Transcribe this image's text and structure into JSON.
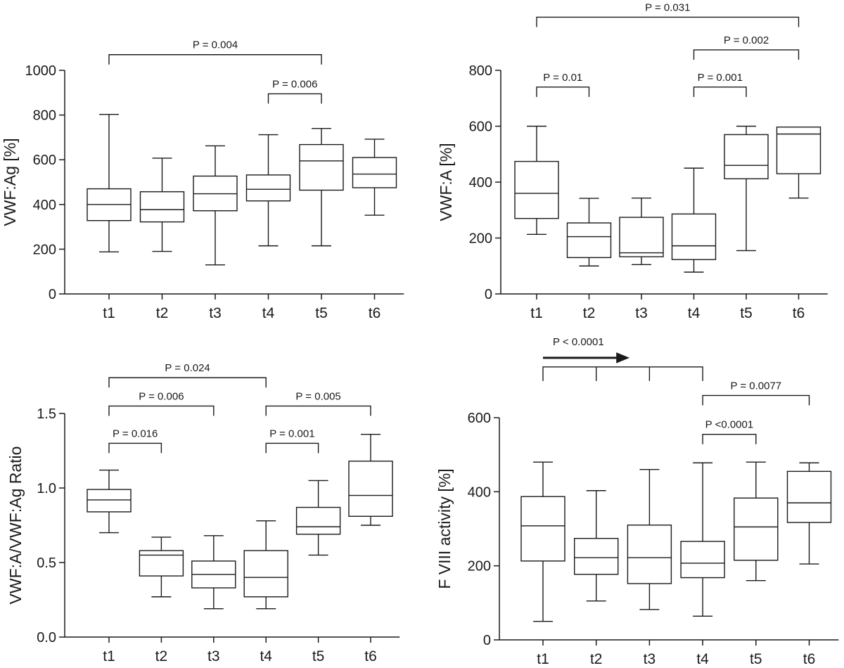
{
  "chart_data": [
    {
      "type": "box",
      "ylabel": "VWF:Ag [%]",
      "ylim": [
        0,
        1000
      ],
      "yticks": [
        0,
        200,
        400,
        600,
        800,
        1000
      ],
      "categories": [
        "t1",
        "t2",
        "t3",
        "t4",
        "t5",
        "t6"
      ],
      "boxes": [
        {
          "min": 188,
          "q1": 328,
          "median": 400,
          "q3": 470,
          "max": 803
        },
        {
          "min": 190,
          "q1": 322,
          "median": 377,
          "q3": 457,
          "max": 607
        },
        {
          "min": 130,
          "q1": 372,
          "median": 448,
          "q3": 527,
          "max": 662
        },
        {
          "min": 215,
          "q1": 416,
          "median": 468,
          "q3": 532,
          "max": 712
        },
        {
          "min": 215,
          "q1": 464,
          "median": 595,
          "q3": 668,
          "max": 740
        },
        {
          "min": 352,
          "q1": 475,
          "median": 536,
          "q3": 610,
          "max": 692
        }
      ],
      "comparisons": [
        {
          "label": "P = 0.004",
          "from": 0,
          "to": 4,
          "level": 1070
        },
        {
          "label": "P = 0.006",
          "from": 3,
          "to": 4,
          "level": 895
        }
      ]
    },
    {
      "type": "box",
      "ylabel": "VWF:A [%]",
      "ylim": [
        0,
        800
      ],
      "yticks": [
        0,
        200,
        400,
        600,
        800
      ],
      "categories": [
        "t1",
        "t2",
        "t3",
        "t4",
        "t5",
        "t6"
      ],
      "boxes": [
        {
          "min": 213,
          "q1": 270,
          "median": 360,
          "q3": 474,
          "max": 600
        },
        {
          "min": 100,
          "q1": 130,
          "median": 205,
          "q3": 254,
          "max": 342
        },
        {
          "min": 105,
          "q1": 133,
          "median": 147,
          "q3": 274,
          "max": 343
        },
        {
          "min": 78,
          "q1": 123,
          "median": 172,
          "q3": 286,
          "max": 450
        },
        {
          "min": 155,
          "q1": 412,
          "median": 460,
          "q3": 570,
          "max": 600
        },
        {
          "min": 343,
          "q1": 430,
          "median": 572,
          "q3": 597,
          "max": 597
        }
      ],
      "comparisons": [
        {
          "label": "P = 0.031",
          "from": 0,
          "to": 5,
          "level": 990
        },
        {
          "label": "P = 0.01",
          "from": 0,
          "to": 1,
          "level": 740
        },
        {
          "label": "P = 0.002",
          "from": 3,
          "to": 5,
          "level": 873
        },
        {
          "label": "P = 0.001",
          "from": 3,
          "to": 4,
          "level": 740
        }
      ]
    },
    {
      "type": "box",
      "ylabel": "VWF:A/VWF:Ag Ratio",
      "ylim": [
        0,
        1.5
      ],
      "yticks": [
        "0.0",
        "0.5",
        "1.0",
        "1.5"
      ],
      "categories": [
        "t1",
        "t2",
        "t3",
        "t4",
        "t5",
        "t6"
      ],
      "boxes": [
        {
          "min": 0.7,
          "q1": 0.84,
          "median": 0.92,
          "q3": 0.99,
          "max": 1.12
        },
        {
          "min": 0.27,
          "q1": 0.41,
          "median": 0.55,
          "q3": 0.58,
          "max": 0.67
        },
        {
          "min": 0.19,
          "q1": 0.33,
          "median": 0.42,
          "q3": 0.51,
          "max": 0.68
        },
        {
          "min": 0.19,
          "q1": 0.27,
          "median": 0.4,
          "q3": 0.58,
          "max": 0.78
        },
        {
          "min": 0.55,
          "q1": 0.69,
          "median": 0.74,
          "q3": 0.87,
          "max": 1.05
        },
        {
          "min": 0.75,
          "q1": 0.81,
          "median": 0.95,
          "q3": 1.18,
          "max": 1.36
        }
      ],
      "comparisons": [
        {
          "label": "P = 0.024",
          "from": 0,
          "to": 3,
          "level": 1.74
        },
        {
          "label": "P = 0.006",
          "from": 0,
          "to": 2,
          "level": 1.55
        },
        {
          "label": "P = 0.016",
          "from": 0,
          "to": 1,
          "level": 1.3
        },
        {
          "label": "P = 0.005",
          "from": 3,
          "to": 5,
          "level": 1.55
        },
        {
          "label": "P = 0.001",
          "from": 3,
          "to": 4,
          "level": 1.3
        }
      ]
    },
    {
      "type": "box",
      "ylabel": "F VIII activity [%]",
      "ylim": [
        0,
        600
      ],
      "yticks": [
        0,
        200,
        400,
        600
      ],
      "categories": [
        "t1",
        "t2",
        "t3",
        "t4",
        "t5",
        "t6"
      ],
      "boxes": [
        {
          "min": 50,
          "q1": 213,
          "median": 308,
          "q3": 387,
          "max": 480
        },
        {
          "min": 105,
          "q1": 177,
          "median": 222,
          "q3": 274,
          "max": 403
        },
        {
          "min": 82,
          "q1": 152,
          "median": 222,
          "q3": 310,
          "max": 460
        },
        {
          "min": 64,
          "q1": 168,
          "median": 207,
          "q3": 266,
          "max": 478
        },
        {
          "min": 160,
          "q1": 215,
          "median": 305,
          "q3": 383,
          "max": 480
        },
        {
          "min": 205,
          "q1": 317,
          "median": 370,
          "q3": 455,
          "max": 478
        }
      ],
      "trend": {
        "label": "P < 0.0001",
        "from": 0,
        "to": 3,
        "level": 737,
        "ticks": [
          1,
          2
        ]
      },
      "comparisons": [
        {
          "label": "P = 0.0077",
          "from": 3,
          "to": 5,
          "level": 660
        },
        {
          "label": "P <0.0001",
          "from": 3,
          "to": 4,
          "level": 555
        }
      ]
    }
  ]
}
